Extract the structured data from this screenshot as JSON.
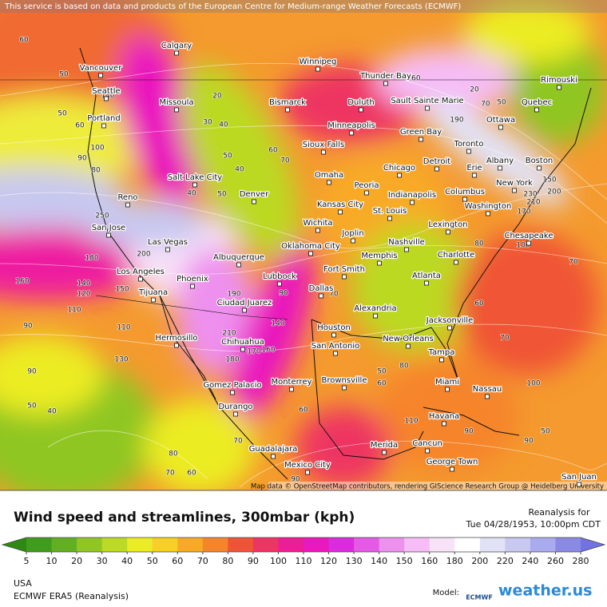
{
  "attribution": "This service is based on data and products of the European Centre for Medium-range Weather Forecasts (ECMWF)",
  "map_credit": "Map data © OpenStreetMap contributors, rendering GIScience Research Group @ Heidelberg University",
  "cities": [
    "Calgary",
    "Winnipeg",
    "Vancouver",
    "Thunder Bay",
    "Seattle",
    "Rimouski",
    "Missoula",
    "Bismarck",
    "Duluth",
    "Sault Sainte Marie",
    "Quebec",
    "Ottawa",
    "Portland",
    "Minneapolis",
    "Green Bay",
    "Sioux Falls",
    "Toronto",
    "Detroit",
    "Albany",
    "Boston",
    "Chicago",
    "Erie",
    "Omaha",
    "Salt Lake City",
    "Reno",
    "Denver",
    "Peoria",
    "Indianapolis",
    "Columbus",
    "New York",
    "Kansas City",
    "Washington",
    "San Jose",
    "St. Louis",
    "Wichita",
    "Lexington",
    "Las Vegas",
    "Joplin",
    "Nashville",
    "Oklahoma City",
    "Chesapeake",
    "Albuquerque",
    "Memphis",
    "Charlotte",
    "Los Angeles",
    "Fort Smith",
    "Phoenix",
    "Lubbock",
    "Atlanta",
    "Tijuana",
    "Dallas",
    "Ciudad Juarez",
    "Alexandria",
    "Jacksonville",
    "Houston",
    "Hermosillo",
    "Chihuahua",
    "San Antonio",
    "New Orleans",
    "Tampa",
    "Brownsville",
    "Miami",
    "Nassau",
    "Gomez Palacio",
    "Monterrey",
    "Durango",
    "Havana",
    "Merida",
    "Cancun",
    "Guadalajara",
    "George Town",
    "Mexico City",
    "San Juan"
  ],
  "speed_labels": [
    60,
    50,
    140,
    50,
    60,
    100,
    90,
    80,
    250,
    180,
    160,
    140,
    120,
    110,
    90,
    110,
    130,
    90,
    50,
    40,
    20,
    30,
    40,
    50,
    40,
    40,
    50,
    200,
    150,
    190,
    210,
    180,
    170,
    160,
    140,
    90,
    70,
    60,
    70,
    160,
    190,
    20,
    70,
    50,
    230,
    210,
    200,
    170,
    150,
    80,
    100,
    70,
    60,
    70,
    80,
    50,
    60,
    100,
    90,
    50,
    90,
    110,
    70,
    80,
    70,
    60,
    60,
    90
  ],
  "title": "Wind speed and streamlines, 300mbar (kph)",
  "reanalysis": "Reanalysis for",
  "timestamp": "Tue 04/28/1953, 10:00pm CDT",
  "legend": {
    "ticks": [
      5,
      10,
      20,
      30,
      40,
      50,
      60,
      70,
      80,
      90,
      100,
      110,
      120,
      130,
      140,
      150,
      160,
      180,
      200,
      220,
      240,
      260,
      280
    ],
    "colors": [
      "#3f9c1c",
      "#62b022",
      "#8fc622",
      "#bcd924",
      "#ecec22",
      "#f8d024",
      "#f8aa26",
      "#f6842a",
      "#f05436",
      "#ee3462",
      "#ee1c96",
      "#ea18be",
      "#dc2ade",
      "#e45ae6",
      "#ee90ee",
      "#f6bcf6",
      "#f8e2f8",
      "#ffffff",
      "#e2e2f6",
      "#c8c8f0",
      "#aaaaee",
      "#8a8ae6"
    ],
    "low_color": "#2c8a12",
    "high_color": "#7272e0"
  },
  "region": "USA",
  "model_source": "ECMWF ERA5 (Reanalysis)",
  "model_label": "Model:",
  "model_logo": "ECMWF",
  "brand": "weather.us"
}
